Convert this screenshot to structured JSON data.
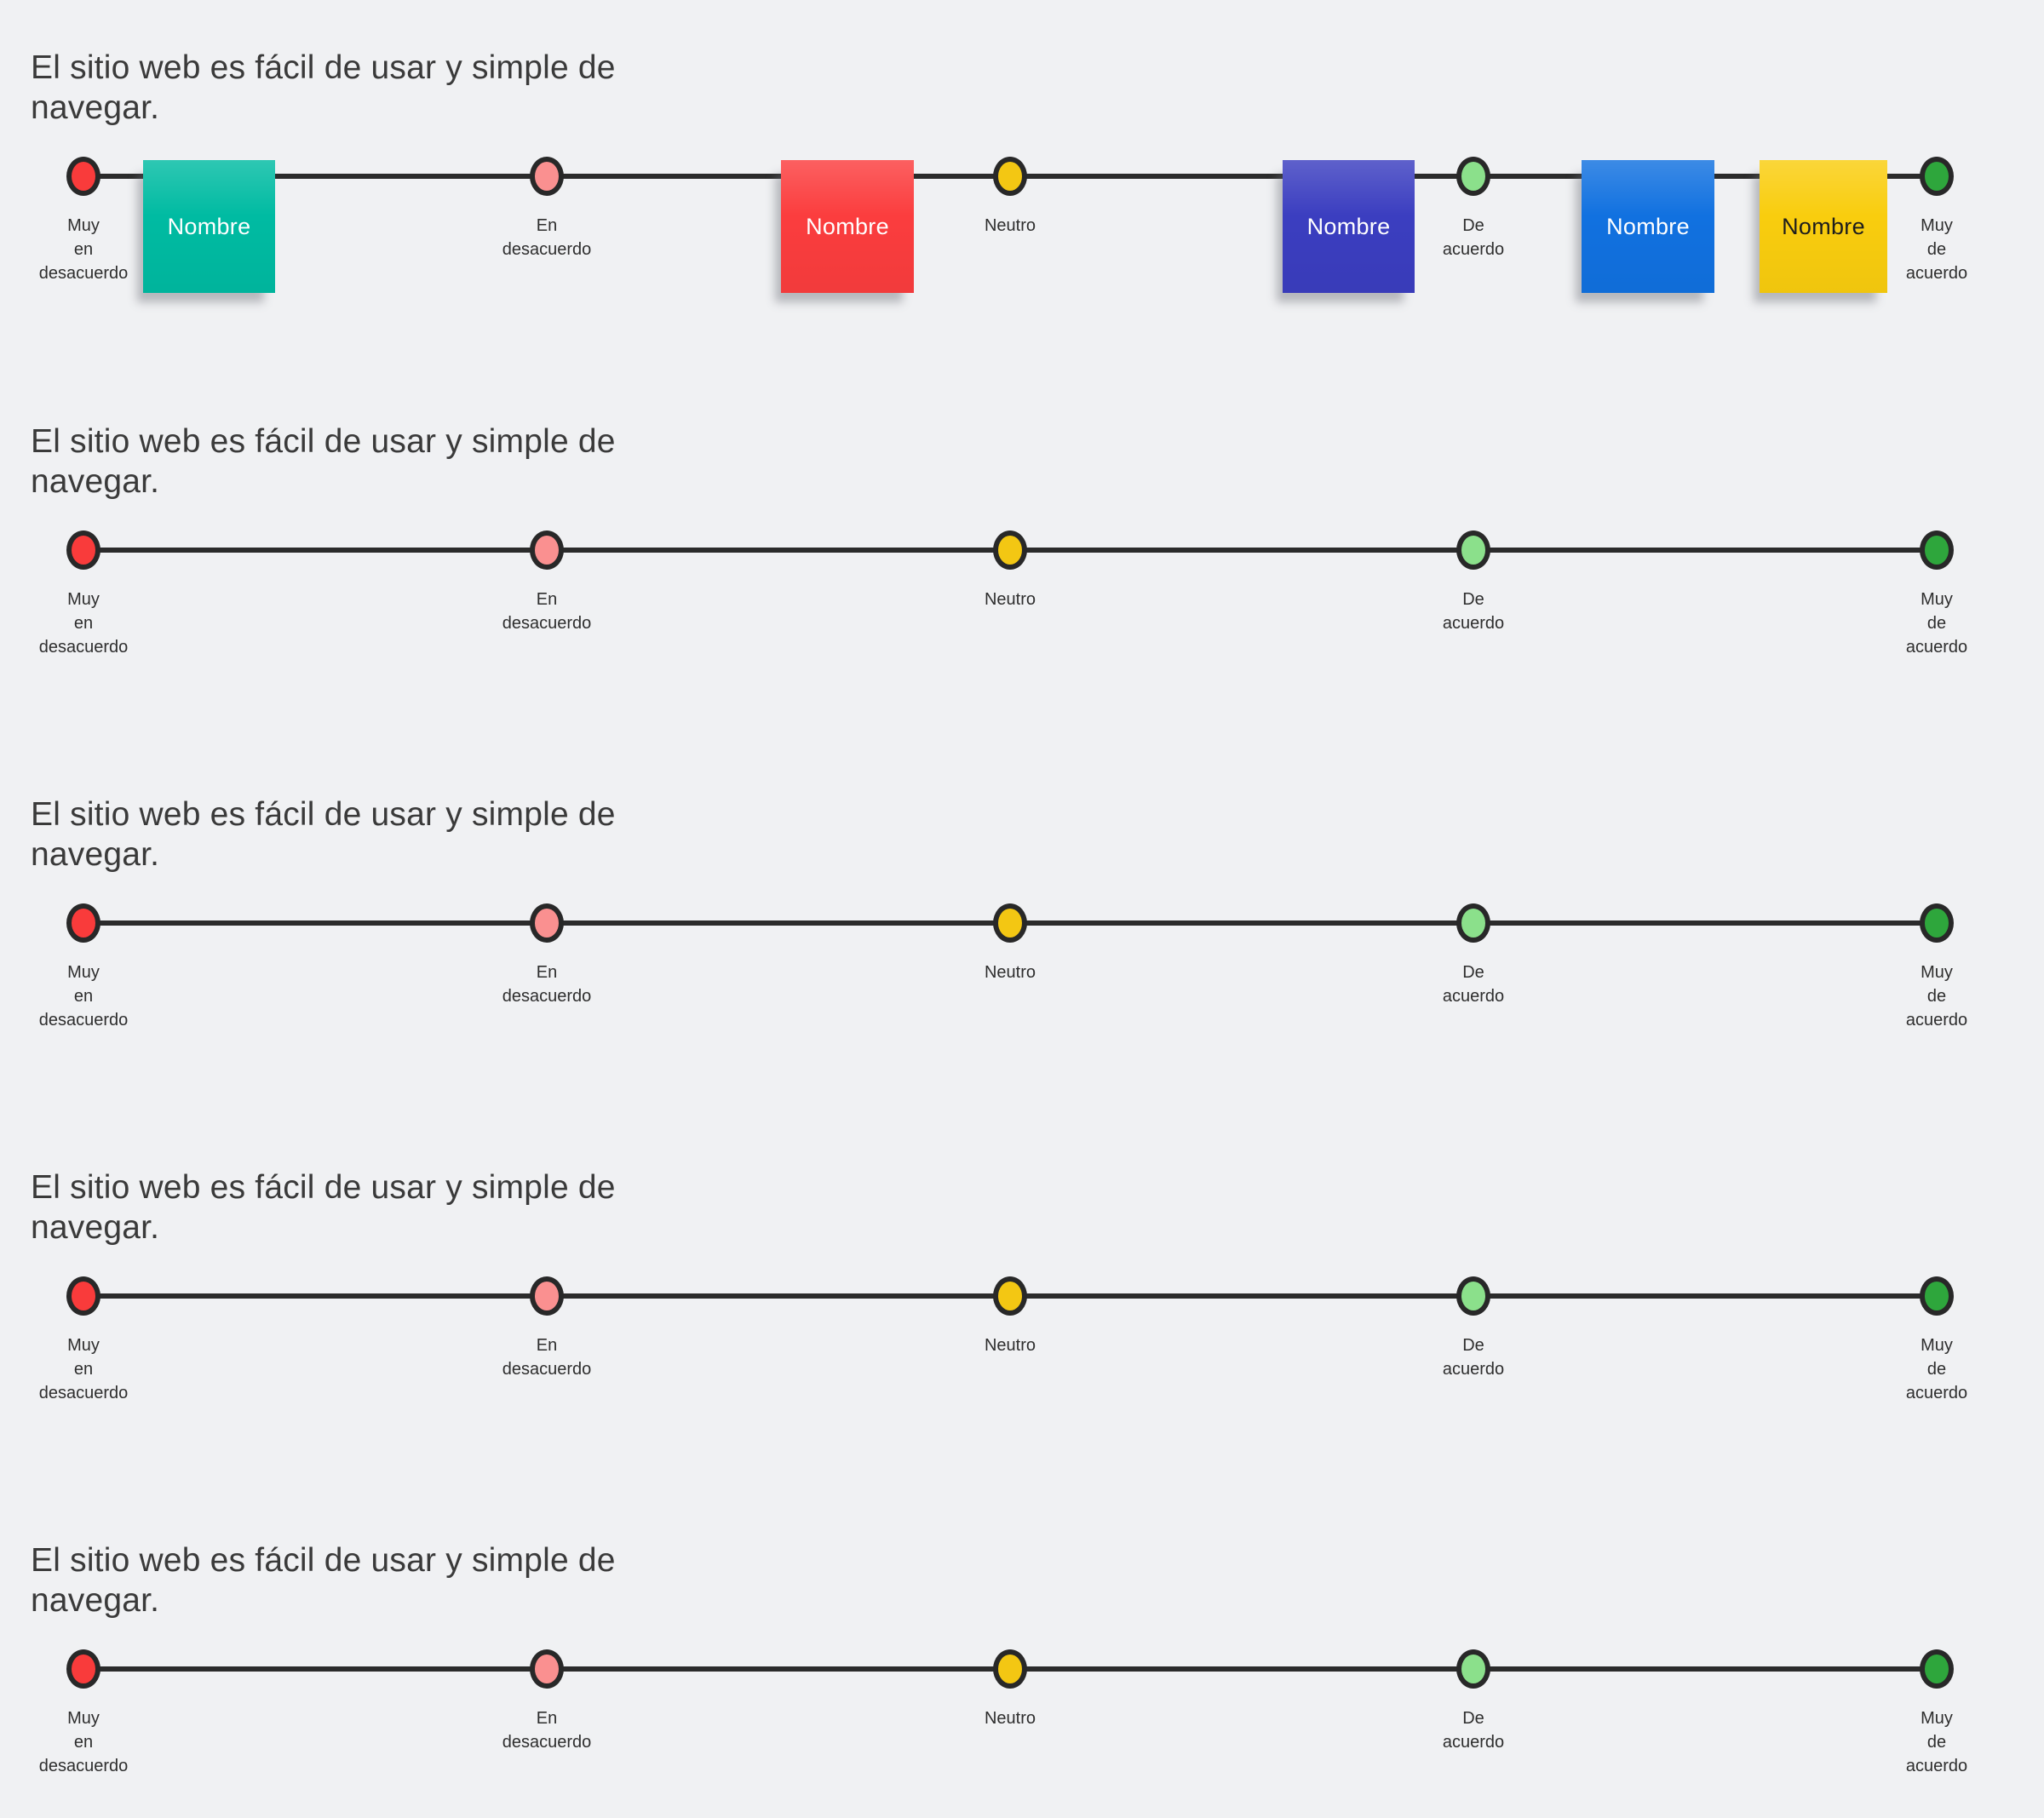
{
  "board": {
    "background": "#f0f1f3",
    "line_color": "#2b2b2b",
    "dot_border_color": "#282828"
  },
  "questions": [
    {
      "title": "El sitio web es fácil de usar y simple de navegar."
    },
    {
      "title": "El sitio web es fácil de usar y simple de navegar."
    },
    {
      "title": "El sitio web es fácil de usar y simple de navegar."
    },
    {
      "title": "El sitio web es fácil de usar y simple de navegar."
    },
    {
      "title": "El sitio web es fácil de usar y simple de navegar."
    }
  ],
  "scale": {
    "options": [
      {
        "label": "Muy\nen\ndesacuerdo",
        "color": "#f93b3b"
      },
      {
        "label": "En\ndesacuerdo",
        "color": "#fa9090"
      },
      {
        "label": "Neutro",
        "color": "#f3c713"
      },
      {
        "label": "De\nacuerdo",
        "color": "#8be08b"
      },
      {
        "label": "Muy\nde\nacuerdo",
        "color": "#2ea63c"
      }
    ]
  },
  "stickies": [
    {
      "label": "Nombre",
      "color": "#00bba2",
      "text_color": "#ffffff"
    },
    {
      "label": "Nombre",
      "color": "#fb3d3e",
      "text_color": "#ffffff"
    },
    {
      "label": "Nombre",
      "color": "#3b3ec0",
      "text_color": "#ffffff"
    },
    {
      "label": "Nombre",
      "color": "#1171e0",
      "text_color": "#ffffff"
    },
    {
      "label": "Nombre",
      "color": "#f9cd0e",
      "text_color": "#1d1d1d"
    }
  ]
}
